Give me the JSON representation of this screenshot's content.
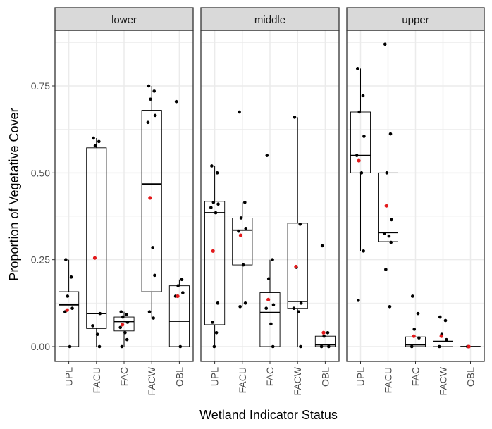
{
  "chart_data": {
    "type": "boxplot",
    "xlabel": "Wetland Indicator Status",
    "ylabel": "Proportion of Vegetative Cover",
    "ylim": [
      -0.04,
      0.9
    ],
    "yticks": [
      0,
      0.25,
      0.5,
      0.75
    ],
    "ytick_labels": [
      "0.00",
      "0.25",
      "0.50",
      "0.75"
    ],
    "categories": [
      "UPL",
      "FACU",
      "FAC",
      "FACW",
      "OBL"
    ],
    "grid": true,
    "colors": {
      "points": "#000000",
      "mean": "#e31a1c",
      "strip_bg": "#d9d9d9",
      "grid": "#ebebeb",
      "frame": "#333333"
    },
    "panels": [
      {
        "name": "lower",
        "groups": [
          {
            "category": "UPL",
            "box": {
              "q1": 0.0,
              "median": 0.12,
              "q3": 0.158,
              "lo": 0.0,
              "hi": 0.25
            },
            "mean": 0.105,
            "points": [
              0.25,
              0.2,
              0.145,
              0.11,
              0.1,
              0.0
            ]
          },
          {
            "category": "FACU",
            "box": {
              "q1": 0.052,
              "median": 0.095,
              "q3": 0.572,
              "lo": 0.0,
              "hi": 0.6
            },
            "mean": 0.255,
            "points": [
              0.6,
              0.59,
              0.578,
              0.095,
              0.06,
              0.035,
              0.0
            ]
          },
          {
            "category": "FAC",
            "box": {
              "q1": 0.045,
              "median": 0.072,
              "q3": 0.085,
              "lo": 0.0,
              "hi": 0.1
            },
            "mean": 0.063,
            "points": [
              0.1,
              0.092,
              0.085,
              0.07,
              0.055,
              0.04,
              0.02,
              0.0
            ]
          },
          {
            "category": "FACW",
            "box": {
              "q1": 0.158,
              "median": 0.468,
              "q3": 0.68,
              "lo": 0.08,
              "hi": 0.75
            },
            "mean": 0.428,
            "points": [
              0.75,
              0.735,
              0.712,
              0.665,
              0.645,
              0.285,
              0.205,
              0.1,
              0.082
            ]
          },
          {
            "category": "OBL",
            "box": {
              "q1": 0.0,
              "median": 0.073,
              "q3": 0.175,
              "lo": 0.0,
              "hi": 0.193
            },
            "mean": 0.145,
            "points": [
              0.705,
              0.193,
              0.175,
              0.155,
              0.145,
              0.0
            ]
          }
        ]
      },
      {
        "name": "middle",
        "groups": [
          {
            "category": "UPL",
            "box": {
              "q1": 0.063,
              "median": 0.385,
              "q3": 0.418,
              "lo": 0.0,
              "hi": 0.52
            },
            "mean": 0.275,
            "points": [
              0.52,
              0.5,
              0.415,
              0.41,
              0.4,
              0.385,
              0.125,
              0.07,
              0.04,
              0.0
            ]
          },
          {
            "category": "FACU",
            "box": {
              "q1": 0.235,
              "median": 0.335,
              "q3": 0.37,
              "lo": 0.115,
              "hi": 0.415
            },
            "mean": 0.32,
            "points": [
              0.675,
              0.415,
              0.37,
              0.34,
              0.332,
              0.235,
              0.125,
              0.115
            ]
          },
          {
            "category": "FAC",
            "box": {
              "q1": 0.0,
              "median": 0.098,
              "q3": 0.155,
              "lo": 0.0,
              "hi": 0.25
            },
            "mean": 0.135,
            "points": [
              0.55,
              0.25,
              0.195,
              0.12,
              0.11,
              0.065,
              0.0
            ]
          },
          {
            "category": "FACW",
            "box": {
              "q1": 0.11,
              "median": 0.13,
              "q3": 0.355,
              "lo": 0.0,
              "hi": 0.66
            },
            "mean": 0.23,
            "points": [
              0.66,
              0.352,
              0.228,
              0.125,
              0.11,
              0.1,
              0.0
            ]
          },
          {
            "category": "OBL",
            "box": {
              "q1": 0.0,
              "median": 0.005,
              "q3": 0.03,
              "lo": 0.0,
              "hi": 0.03
            },
            "mean": 0.04,
            "points": [
              0.29,
              0.04,
              0.03,
              0.0,
              0.0
            ]
          }
        ]
      },
      {
        "name": "upper",
        "groups": [
          {
            "category": "UPL",
            "box": {
              "q1": 0.5,
              "median": 0.55,
              "q3": 0.675,
              "lo": 0.275,
              "hi": 0.8
            },
            "mean": 0.535,
            "points": [
              0.8,
              0.722,
              0.675,
              0.605,
              0.55,
              0.5,
              0.275,
              0.133
            ]
          },
          {
            "category": "FACU",
            "box": {
              "q1": 0.302,
              "median": 0.328,
              "q3": 0.5,
              "lo": 0.115,
              "hi": 0.612
            },
            "mean": 0.405,
            "points": [
              0.87,
              0.612,
              0.5,
              0.365,
              0.325,
              0.318,
              0.3,
              0.222,
              0.115
            ]
          },
          {
            "category": "FAC",
            "box": {
              "q1": 0.0,
              "median": 0.005,
              "q3": 0.028,
              "lo": 0.0,
              "hi": 0.028
            },
            "mean": 0.03,
            "points": [
              0.145,
              0.095,
              0.05,
              0.025,
              0.0
            ]
          },
          {
            "category": "FACW",
            "box": {
              "q1": 0.0,
              "median": 0.015,
              "q3": 0.068,
              "lo": 0.0,
              "hi": 0.085
            },
            "mean": 0.03,
            "points": [
              0.085,
              0.075,
              0.035,
              0.02,
              0.0
            ]
          },
          {
            "category": "OBL",
            "box": {
              "q1": 0.0,
              "median": 0.0,
              "q3": 0.0,
              "lo": 0.0,
              "hi": 0.0
            },
            "mean": 0.0,
            "points": [
              0.0
            ]
          }
        ]
      }
    ]
  }
}
